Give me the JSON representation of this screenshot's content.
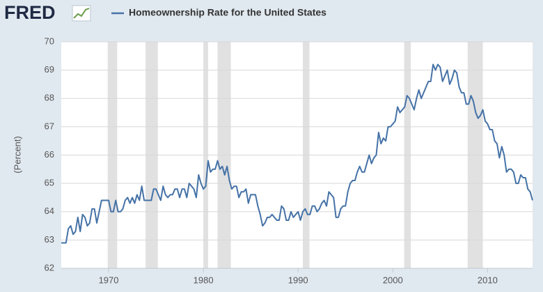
{
  "logo": "FRED",
  "chart_data": {
    "type": "line",
    "title": "Homeownership Rate for the United States",
    "y_label": "(Percent)",
    "xlim": [
      1965,
      2014.75
    ],
    "ylim": [
      62,
      70
    ],
    "xticks": [
      1970,
      1980,
      1990,
      2000,
      2010
    ],
    "yticks": [
      62,
      63,
      64,
      65,
      66,
      67,
      68,
      69,
      70
    ],
    "grid": true,
    "recessions": [
      [
        1969.9,
        1970.9
      ],
      [
        1973.9,
        1975.2
      ],
      [
        1980.0,
        1980.5
      ],
      [
        1981.5,
        1982.9
      ],
      [
        1990.5,
        1991.2
      ],
      [
        2001.2,
        2001.9
      ],
      [
        2007.9,
        2009.5
      ]
    ],
    "recession_color": "#e1e1e1",
    "x": [
      1965,
      1965.25,
      1965.5,
      1965.75,
      1966,
      1966.25,
      1966.5,
      1966.75,
      1967,
      1967.25,
      1967.5,
      1967.75,
      1968,
      1968.25,
      1968.5,
      1968.75,
      1969,
      1969.25,
      1969.5,
      1969.75,
      1970,
      1970.25,
      1970.5,
      1970.75,
      1971,
      1971.25,
      1971.5,
      1971.75,
      1972,
      1972.25,
      1972.5,
      1972.75,
      1973,
      1973.25,
      1973.5,
      1973.75,
      1974,
      1974.25,
      1974.5,
      1974.75,
      1975,
      1975.25,
      1975.5,
      1975.75,
      1976,
      1976.25,
      1976.5,
      1976.75,
      1977,
      1977.25,
      1977.5,
      1977.75,
      1978,
      1978.25,
      1978.5,
      1978.75,
      1979,
      1979.25,
      1979.5,
      1979.75,
      1980,
      1980.25,
      1980.5,
      1980.75,
      1981,
      1981.25,
      1981.5,
      1981.75,
      1982,
      1982.25,
      1982.5,
      1982.75,
      1983,
      1983.25,
      1983.5,
      1983.75,
      1984,
      1984.25,
      1984.5,
      1984.75,
      1985,
      1985.25,
      1985.5,
      1985.75,
      1986,
      1986.25,
      1986.5,
      1986.75,
      1987,
      1987.25,
      1987.5,
      1987.75,
      1988,
      1988.25,
      1988.5,
      1988.75,
      1989,
      1989.25,
      1989.5,
      1989.75,
      1990,
      1990.25,
      1990.5,
      1990.75,
      1991,
      1991.25,
      1991.5,
      1991.75,
      1992,
      1992.25,
      1992.5,
      1992.75,
      1993,
      1993.25,
      1993.5,
      1993.75,
      1994,
      1994.25,
      1994.5,
      1994.75,
      1995,
      1995.25,
      1995.5,
      1995.75,
      1996,
      1996.25,
      1996.5,
      1996.75,
      1997,
      1997.25,
      1997.5,
      1997.75,
      1998,
      1998.25,
      1998.5,
      1998.75,
      1999,
      1999.25,
      1999.5,
      1999.75,
      2000,
      2000.25,
      2000.5,
      2000.75,
      2001,
      2001.25,
      2001.5,
      2001.75,
      2002,
      2002.25,
      2002.5,
      2002.75,
      2003,
      2003.25,
      2003.5,
      2003.75,
      2004,
      2004.25,
      2004.5,
      2004.75,
      2005,
      2005.25,
      2005.5,
      2005.75,
      2006,
      2006.25,
      2006.5,
      2006.75,
      2007,
      2007.25,
      2007.5,
      2007.75,
      2008,
      2008.25,
      2008.5,
      2008.75,
      2009,
      2009.25,
      2009.5,
      2009.75,
      2010,
      2010.25,
      2010.5,
      2010.75,
      2011,
      2011.25,
      2011.5,
      2011.75,
      2012,
      2012.25,
      2012.5,
      2012.75,
      2013,
      2013.25,
      2013.5,
      2013.75,
      2014,
      2014.25,
      2014.5,
      2014.75
    ],
    "series": [
      {
        "name": "Homeownership Rate for the United States",
        "color": "#4572a7",
        "values": [
          62.9,
          62.9,
          62.9,
          63.4,
          63.5,
          63.2,
          63.3,
          63.8,
          63.3,
          63.9,
          63.8,
          63.5,
          63.6,
          64.1,
          64.1,
          63.6,
          64.0,
          64.4,
          64.4,
          64.4,
          64.4,
          64.0,
          64.0,
          64.4,
          64.0,
          64.0,
          64.1,
          64.4,
          64.5,
          64.3,
          64.5,
          64.3,
          64.6,
          64.4,
          64.9,
          64.4,
          64.4,
          64.4,
          64.4,
          64.8,
          64.8,
          64.6,
          64.4,
          64.9,
          64.6,
          64.5,
          64.6,
          64.6,
          64.8,
          64.8,
          64.5,
          64.8,
          64.8,
          64.5,
          65.0,
          64.9,
          64.8,
          64.5,
          65.3,
          65.0,
          64.8,
          64.9,
          65.8,
          65.4,
          65.5,
          65.5,
          65.8,
          65.5,
          65.6,
          65.3,
          65.6,
          65.1,
          64.8,
          64.9,
          64.9,
          64.5,
          64.7,
          64.7,
          64.8,
          64.3,
          64.6,
          64.6,
          64.6,
          64.2,
          63.9,
          63.5,
          63.6,
          63.8,
          63.8,
          63.9,
          63.8,
          63.7,
          63.7,
          64.2,
          64.1,
          63.7,
          63.7,
          64.0,
          63.8,
          63.9,
          64.0,
          63.7,
          64.0,
          64.1,
          63.9,
          63.9,
          64.2,
          64.2,
          64.0,
          64.1,
          64.3,
          64.4,
          64.2,
          64.7,
          64.6,
          64.5,
          63.8,
          63.8,
          64.1,
          64.2,
          64.2,
          64.7,
          65.0,
          65.1,
          65.1,
          65.4,
          65.6,
          65.4,
          65.4,
          65.7,
          66.0,
          65.7,
          65.9,
          66.0,
          66.8,
          66.4,
          66.6,
          66.5,
          67.0,
          67.0,
          67.1,
          67.2,
          67.7,
          67.5,
          67.6,
          67.7,
          68.1,
          68.0,
          67.8,
          67.6,
          68.0,
          68.3,
          68.0,
          68.2,
          68.4,
          68.6,
          68.6,
          69.2,
          69.0,
          69.2,
          69.1,
          68.6,
          68.8,
          69.0,
          68.5,
          68.7,
          69.0,
          68.9,
          68.4,
          68.2,
          68.2,
          67.8,
          67.8,
          68.1,
          67.9,
          67.5,
          67.3,
          67.4,
          67.6,
          67.2,
          67.1,
          66.9,
          66.9,
          66.5,
          66.4,
          65.9,
          66.3,
          66.0,
          65.4,
          65.5,
          65.5,
          65.4,
          65.0,
          65.0,
          65.3,
          65.2,
          65.2,
          64.8,
          64.7,
          64.4
        ]
      }
    ]
  }
}
